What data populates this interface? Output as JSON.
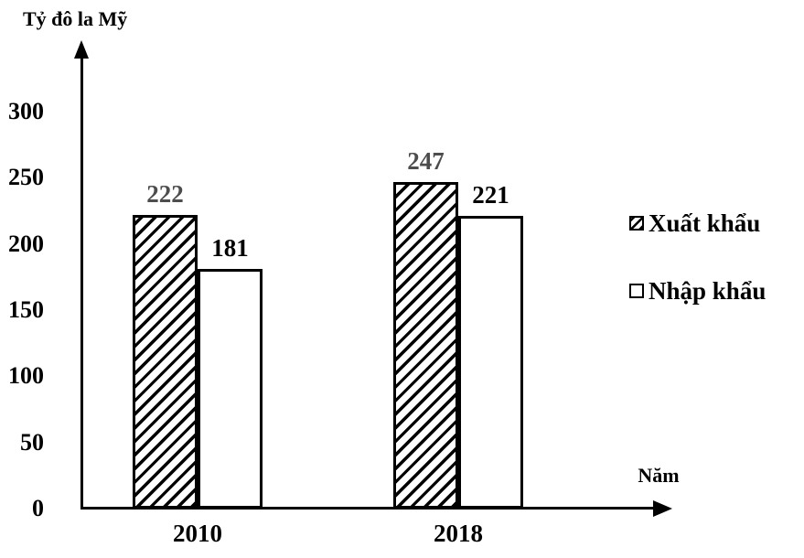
{
  "chart_data": {
    "type": "bar",
    "title": "",
    "ylabel": "Tỷ đô la Mỹ",
    "xlabel": "Năm",
    "categories": [
      "2010",
      "2018"
    ],
    "series": [
      {
        "name": "Xuất khẩu",
        "values": [
          222,
          247
        ],
        "style": "hatched",
        "label_color": "#4d4d4d"
      },
      {
        "name": "Nhập khẩu",
        "values": [
          181,
          221
        ],
        "style": "plain",
        "label_color": "#000000"
      }
    ],
    "y_ticks": [
      0,
      50,
      100,
      150,
      200,
      250,
      300
    ],
    "ylim": [
      0,
      300
    ],
    "grid": false,
    "legend_position": "right",
    "bar_value_labels": true
  },
  "colors": {
    "axis": "#000000",
    "background": "#ffffff",
    "bar_border": "#000000",
    "export_value_label": "#4d4d4d",
    "import_value_label": "#000000"
  }
}
